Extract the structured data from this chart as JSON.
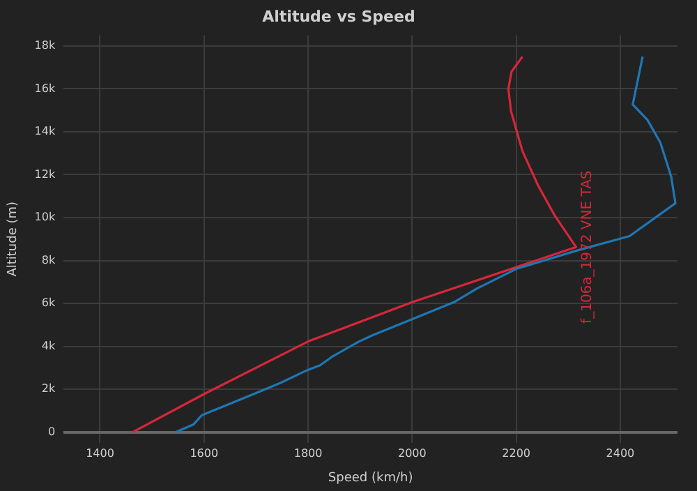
{
  "chart_data": {
    "type": "line",
    "title": "Altitude vs Speed",
    "xlabel": "Speed (km/h)",
    "ylabel": "Altitude (m)",
    "xlim": [
      1330,
      2510
    ],
    "xticks": [
      1400,
      1600,
      1800,
      2000,
      2200,
      2400
    ],
    "ylim": [
      -500,
      18500
    ],
    "yticks": [
      0,
      {
        "value": 2000,
        "label": "2k"
      },
      {
        "value": 4000,
        "label": "4k"
      },
      {
        "value": 6000,
        "label": "6k"
      },
      {
        "value": 8000,
        "label": "8k"
      },
      {
        "value": 10000,
        "label": "10k"
      },
      {
        "value": 12000,
        "label": "12k"
      },
      {
        "value": 14000,
        "label": "14k"
      },
      {
        "value": 16000,
        "label": "16k"
      },
      {
        "value": 18000,
        "label": "18k"
      }
    ],
    "grid": true,
    "marker": "none",
    "line_style": "solid",
    "series": [
      {
        "color": "#1f77b4",
        "x": [
          1545,
          1580,
          1596,
          1646,
          1697,
          1747,
          1797,
          1823,
          1848,
          1898,
          1923,
          2082,
          2124,
          2200,
          2317,
          2418,
          2506,
          2498,
          2477,
          2452,
          2424,
          2443
        ],
        "values": [
          0,
          370,
          800,
          1290,
          1800,
          2300,
          2880,
          3120,
          3550,
          4230,
          4510,
          6080,
          6690,
          7610,
          8470,
          9140,
          10670,
          11900,
          13500,
          14560,
          15270,
          17500
        ]
      },
      {
        "name": "f_106a_1972 VNE TAS",
        "color": "#d62739",
        "x": [
          1462,
          1600,
          1800,
          2000,
          2315,
          2275,
          2242,
          2212,
          2190,
          2185,
          2191,
          2212
        ],
        "values": [
          0,
          1780,
          4230,
          6060,
          8630,
          10060,
          11500,
          13100,
          14960,
          16000,
          16800,
          17500
        ]
      }
    ]
  }
}
